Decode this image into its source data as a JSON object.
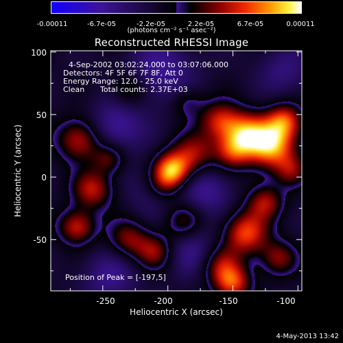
{
  "colorbar": {
    "ticks": [
      "-0.00011",
      "-6.7e-05",
      "-2.2e-05",
      "2.2e-05",
      "6.7e-05",
      "0.00011"
    ],
    "units": "(photons cm⁻² s⁻¹ asec⁻²)"
  },
  "chart_data": {
    "type": "heatmap",
    "title": "Reconstructed RHESSI Image",
    "xlabel": "Heliocentric X (arcsec)",
    "ylabel": "Heliocentric Y (arcsec)",
    "xlim": [
      -290,
      -97
    ],
    "ylim": [
      -91,
      101
    ],
    "x_ticks": [
      "-250",
      "-200",
      "-150",
      "-100"
    ],
    "y_ticks": [
      "100",
      "50",
      "0",
      "-50"
    ],
    "colorbar_range": [
      -0.00011,
      0.00011
    ],
    "annotations": {
      "time": "4-Sep-2002 03:02:24.000 to 03:07:06.000",
      "detectors": "Detectors: 4F 5F 6F 7F 8F, Att 0",
      "energy": "Energy Range: 12.0 - 25.0 keV",
      "clean": "Clean",
      "counts": "Total counts: 2.37E+03",
      "peak": "Position of Peak = [-197,5]"
    },
    "peak": [
      -197,
      5
    ],
    "sources": [
      {
        "x": -197,
        "y": 5,
        "amp": 1.0,
        "s": 10
      },
      {
        "x": -180,
        "y": 18,
        "amp": 0.55,
        "s": 12
      },
      {
        "x": -205,
        "y": -8,
        "amp": 0.45,
        "s": 10
      },
      {
        "x": -120,
        "y": 25,
        "amp": 0.95,
        "s": 13
      },
      {
        "x": -140,
        "y": 35,
        "amp": 0.8,
        "s": 12
      },
      {
        "x": -110,
        "y": 45,
        "amp": 0.7,
        "s": 10
      },
      {
        "x": -160,
        "y": 45,
        "amp": 0.6,
        "s": 11
      },
      {
        "x": -150,
        "y": 20,
        "amp": 0.55,
        "s": 10
      },
      {
        "x": -268,
        "y": 30,
        "amp": 0.65,
        "s": 12
      },
      {
        "x": -258,
        "y": -10,
        "amp": 0.6,
        "s": 11
      },
      {
        "x": -270,
        "y": -40,
        "amp": 0.65,
        "s": 10
      },
      {
        "x": -245,
        "y": 15,
        "amp": 0.45,
        "s": 9
      },
      {
        "x": -230,
        "y": -50,
        "amp": 0.5,
        "s": 11
      },
      {
        "x": -210,
        "y": -60,
        "amp": 0.5,
        "s": 10
      },
      {
        "x": -188,
        "y": -35,
        "amp": 0.4,
        "s": 10
      },
      {
        "x": -140,
        "y": -45,
        "amp": 0.75,
        "s": 12
      },
      {
        "x": -125,
        "y": -20,
        "amp": 0.55,
        "s": 10
      },
      {
        "x": -160,
        "y": -70,
        "amp": 0.5,
        "s": 11
      },
      {
        "x": -150,
        "y": -85,
        "amp": 0.7,
        "s": 10
      },
      {
        "x": -115,
        "y": -65,
        "amp": 0.5,
        "s": 10
      },
      {
        "x": -230,
        "y": 70,
        "amp": 0.35,
        "s": 10
      },
      {
        "x": -185,
        "y": 60,
        "amp": 0.3,
        "s": 9
      },
      {
        "x": -105,
        "y": 5,
        "amp": 0.4,
        "s": 9
      },
      {
        "x": -210,
        "y": -10,
        "amp": -0.35,
        "s": 14
      },
      {
        "x": -240,
        "y": 40,
        "amp": -0.45,
        "s": 15
      },
      {
        "x": -170,
        "y": -10,
        "amp": -0.4,
        "s": 14
      },
      {
        "x": -205,
        "y": 85,
        "amp": -0.4,
        "s": 18
      },
      {
        "x": -180,
        "y": -60,
        "amp": -0.35,
        "s": 14
      },
      {
        "x": -245,
        "y": -80,
        "amp": -0.35,
        "s": 15
      },
      {
        "x": -110,
        "y": 85,
        "amp": -0.3,
        "s": 14
      }
    ]
  },
  "footer": {
    "date": "4-May-2013 13:42"
  }
}
